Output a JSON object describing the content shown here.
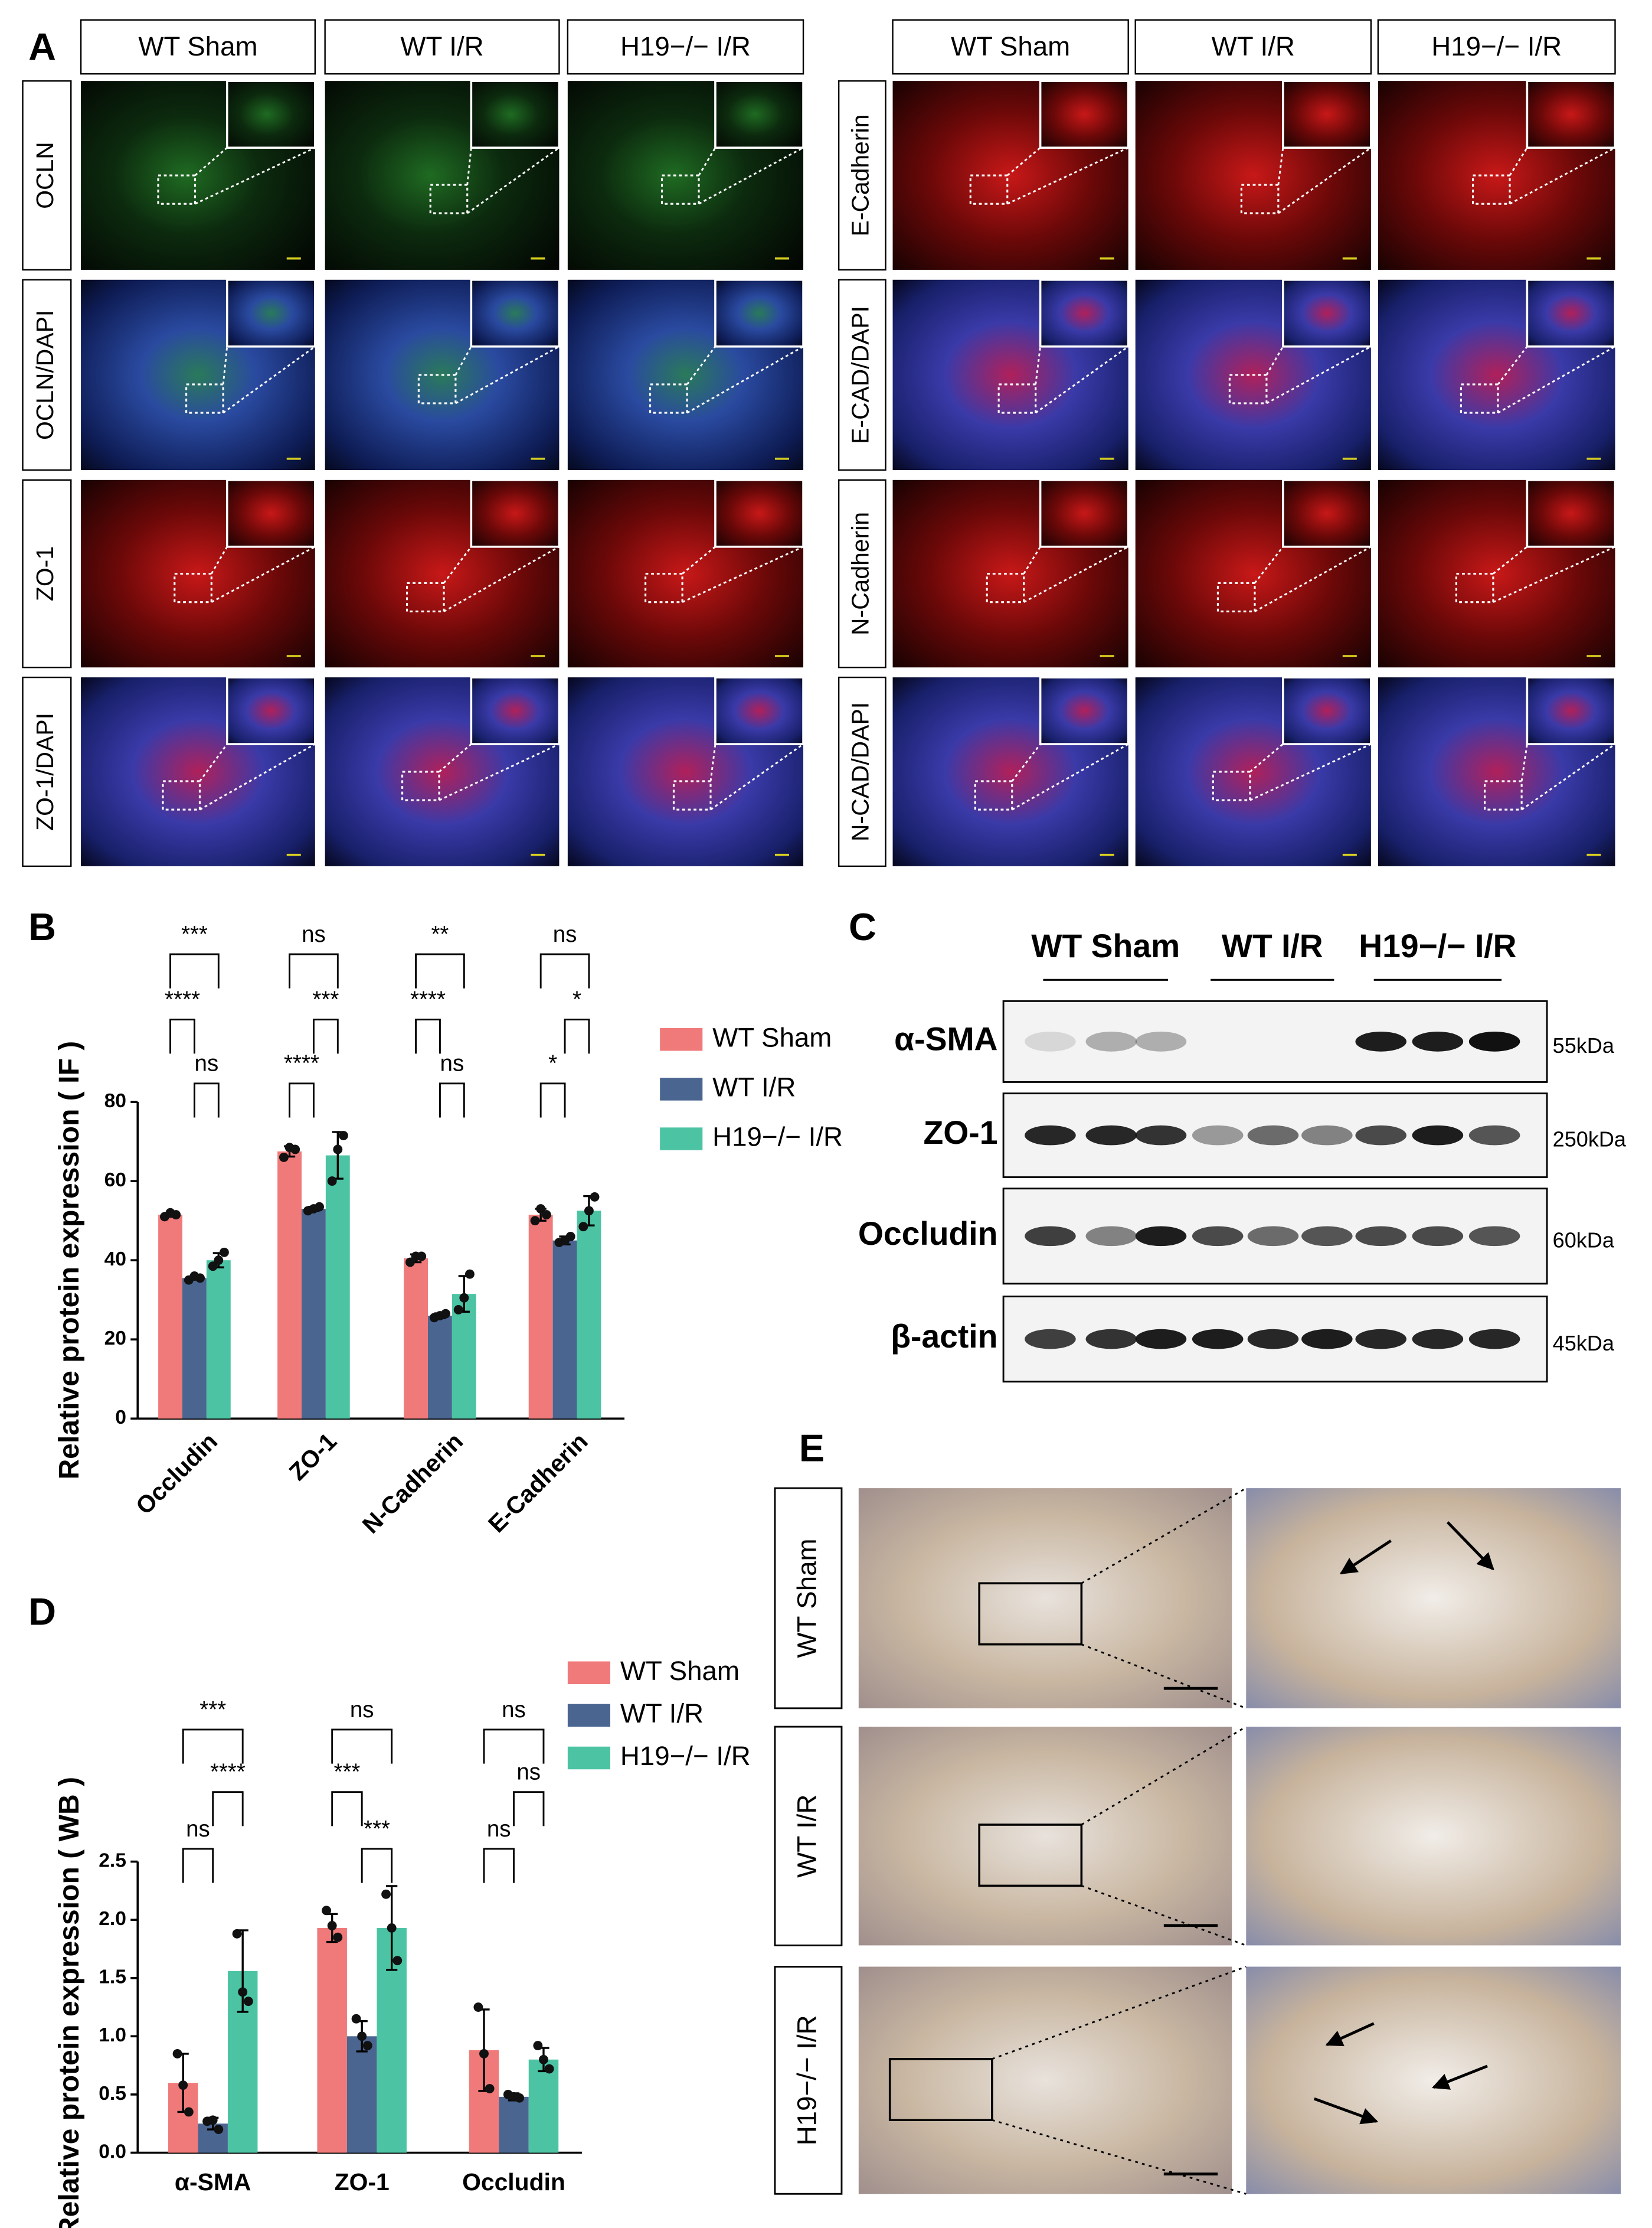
{
  "panel_labels": [
    "A",
    "B",
    "C",
    "D",
    "E"
  ],
  "panel_a": {
    "left_columns": [
      "WT Sham",
      "WT I/R",
      "H19−/− I/R"
    ],
    "right_columns": [
      "WT Sham",
      "WT I/R",
      "H19−/− I/R"
    ],
    "left_rows": [
      "OCLN",
      "OCLN/DAPI",
      "ZO-1",
      "ZO-1/DAPI"
    ],
    "right_rows": [
      "E-Cadherin",
      "E-CAD/DAPI",
      "N-Cadherin",
      "N-CAD/DAPI"
    ]
  },
  "panel_c": {
    "groups": [
      "WT Sham",
      "WT I/R",
      "H19−/− I/R"
    ],
    "rows": [
      {
        "protein": "α-SMA",
        "size": "55kDa"
      },
      {
        "protein": "ZO-1",
        "size": "250kDa"
      },
      {
        "protein": "Occludin",
        "size": "60kDa"
      },
      {
        "protein": "β-actin",
        "size": "45kDa"
      }
    ]
  },
  "panel_e": {
    "rows": [
      "WT Sham",
      "WT I/R",
      "H19−/− I/R"
    ]
  },
  "chart_data": [
    {
      "type": "bar",
      "y_label": "Relative protein expression ( IF )",
      "categories": [
        "Occludin",
        "ZO-1",
        "N-Cadherin",
        "E-Cadherin"
      ],
      "series": [
        {
          "name": "WT Sham",
          "color": "#f07a7a",
          "values": [
            51.5,
            67.5,
            40.5,
            51.5
          ],
          "errors": [
            0.5,
            1.3,
            1,
            1.5
          ],
          "points": [
            [
              51,
              52,
              51.5
            ],
            [
              66,
              68.5,
              68
            ],
            [
              39.5,
              41,
              41
            ],
            [
              50,
              53,
              51.5
            ]
          ]
        },
        {
          "name": "WT I/R",
          "color": "#4a6690",
          "values": [
            35.5,
            53,
            26,
            45
          ],
          "errors": [
            0.4,
            0.5,
            0.6,
            1
          ],
          "points": [
            [
              35,
              36,
              35.5
            ],
            [
              52.5,
              53,
              53.5
            ],
            [
              25.5,
              26,
              26.5
            ],
            [
              44.5,
              45,
              46
            ]
          ]
        },
        {
          "name": "H19−/− I/R",
          "color": "#4cc4a4",
          "values": [
            40,
            66.5,
            31.5,
            52.5
          ],
          "errors": [
            1.8,
            5.9,
            4.5,
            3.7
          ],
          "points": [
            [
              38.5,
              40,
              42
            ],
            [
              60,
              68,
              71.5
            ],
            [
              27.5,
              30.5,
              36.5
            ],
            [
              48.5,
              52.5,
              56
            ]
          ]
        }
      ],
      "ylim": [
        0,
        80
      ],
      "yticks": [
        0,
        20,
        40,
        60,
        80
      ],
      "significance": [
        [
          "***",
          "****",
          "ns"
        ],
        [
          "ns",
          "***",
          "****"
        ],
        [
          "**",
          "****",
          "ns"
        ],
        [
          "ns",
          "*",
          "*"
        ]
      ]
    },
    {
      "type": "bar",
      "y_label": "Relative protein expression ( WB )",
      "categories": [
        "α-SMA",
        "ZO-1",
        "Occludin"
      ],
      "series": [
        {
          "name": "WT Sham",
          "color": "#f07a7a",
          "values": [
            0.6,
            1.93,
            0.88
          ],
          "errors": [
            0.25,
            0.12,
            0.35
          ],
          "points": [
            [
              0.85,
              0.58,
              0.35
            ],
            [
              2.08,
              1.95,
              1.85
            ],
            [
              1.25,
              0.85,
              0.55
            ]
          ]
        },
        {
          "name": "WT I/R",
          "color": "#4a6690",
          "values": [
            0.25,
            1.0,
            0.48
          ],
          "errors": [
            0.05,
            0.13,
            0.03
          ],
          "points": [
            [
              0.27,
              0.28,
              0.2
            ],
            [
              1.15,
              1.0,
              0.92
            ],
            [
              0.5,
              0.48,
              0.47
            ]
          ]
        },
        {
          "name": "H19−/− I/R",
          "color": "#4cc4a4",
          "values": [
            1.56,
            1.93,
            0.8
          ],
          "errors": [
            0.35,
            0.36,
            0.1
          ],
          "points": [
            [
              1.88,
              1.38,
              1.3
            ],
            [
              2.22,
              1.93,
              1.65
            ],
            [
              0.92,
              0.8,
              0.72
            ]
          ]
        }
      ],
      "ylim": [
        0,
        2.5
      ],
      "yticks": [
        {
          "value": 0,
          "label": "0.0"
        },
        0.5,
        {
          "value": 1,
          "label": "1.0"
        },
        1.5,
        {
          "value": 2,
          "label": "2.0"
        },
        2.5
      ],
      "significance": [
        [
          "***",
          "****",
          "ns"
        ],
        [
          "ns",
          "***",
          "***"
        ],
        [
          "ns",
          "ns",
          "ns"
        ]
      ]
    }
  ]
}
